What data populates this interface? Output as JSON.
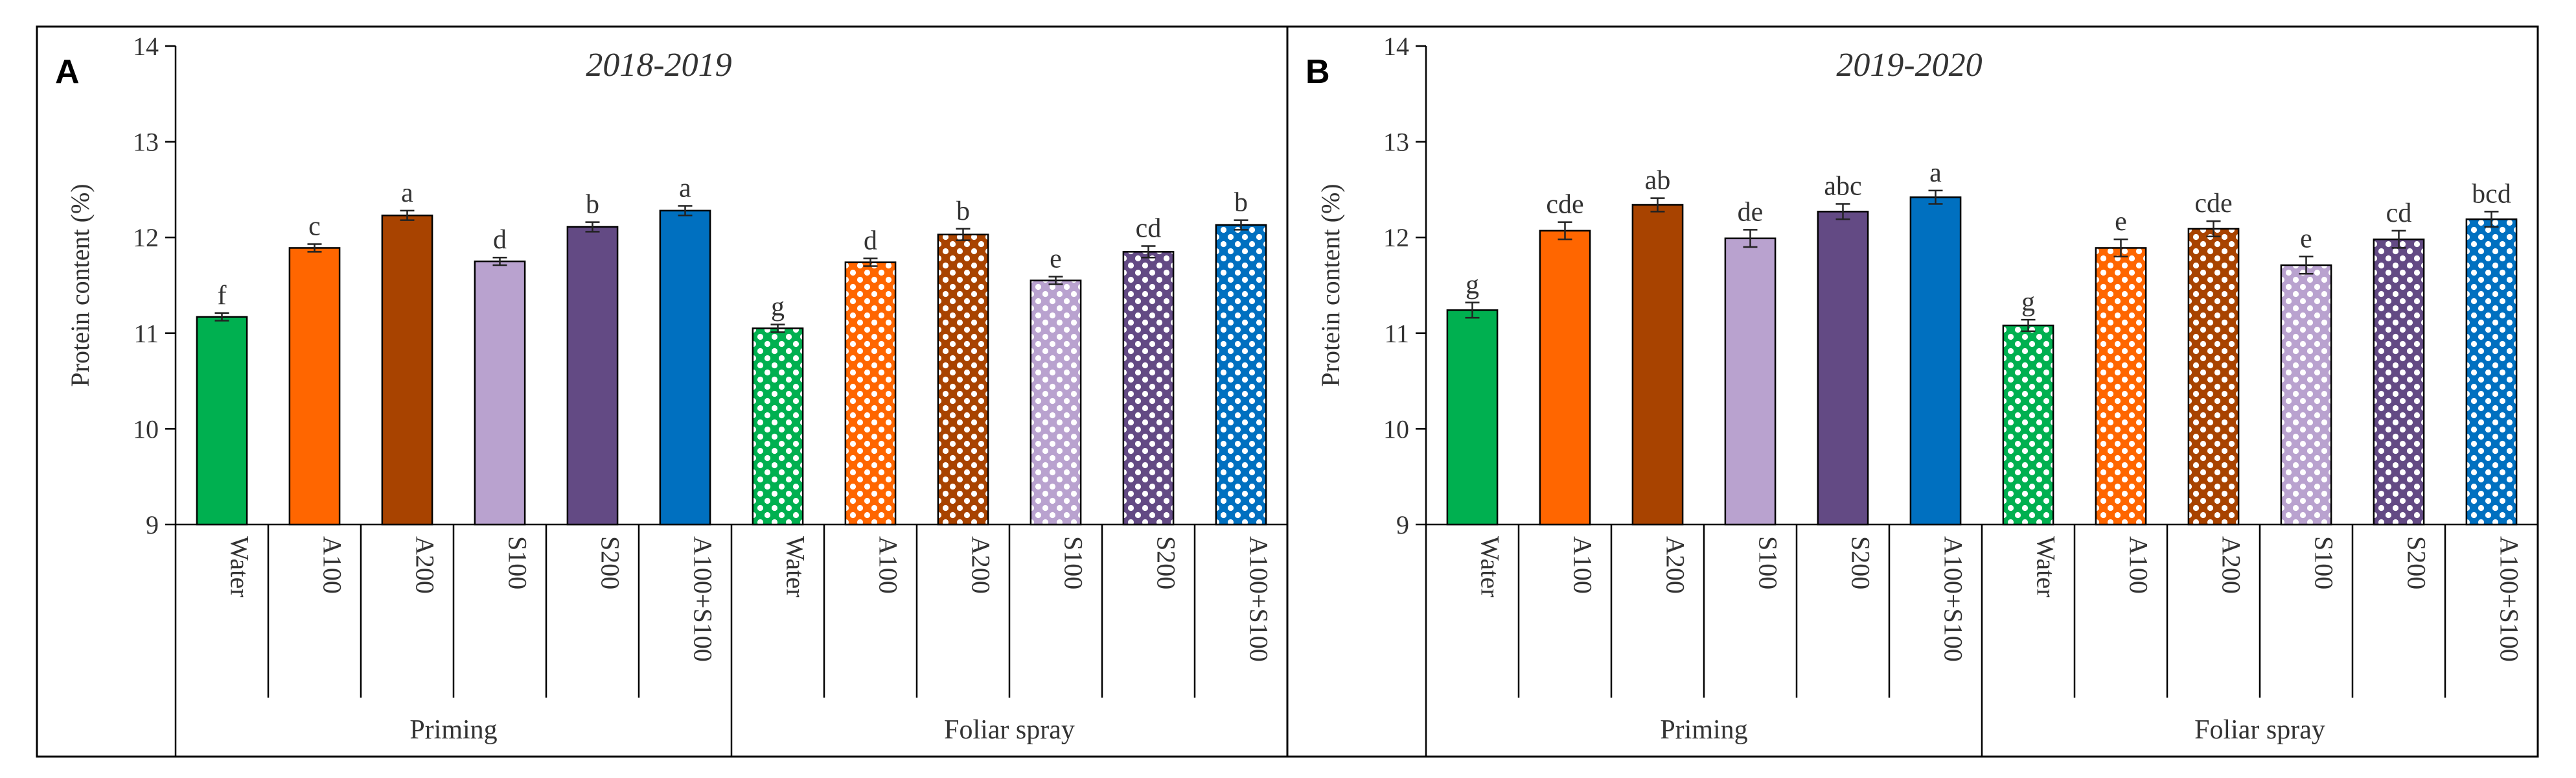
{
  "chart_data": [
    {
      "type": "bar",
      "panel_label": "A",
      "title": "2018-2019",
      "ylabel": "Protein content (%)",
      "ylim": [
        9,
        14
      ],
      "yticks": [
        "9",
        "10",
        "11",
        "12",
        "13",
        "14"
      ],
      "grid": false,
      "categories": [
        "Water",
        "A100",
        "A200",
        "S100",
        "S200",
        "A100+S100",
        "Water",
        "A100",
        "A200",
        "S100",
        "S200",
        "A100+S100"
      ],
      "groups": [
        {
          "label": "Priming",
          "count": 6
        },
        {
          "label": "Foliar spray",
          "count": 6
        }
      ],
      "values": [
        11.17,
        11.89,
        12.23,
        11.75,
        12.11,
        12.28,
        11.05,
        11.74,
        12.03,
        11.55,
        11.85,
        12.13
      ],
      "errors": [
        0.04,
        0.04,
        0.05,
        0.04,
        0.05,
        0.05,
        0.04,
        0.04,
        0.06,
        0.04,
        0.06,
        0.05
      ],
      "letters": [
        "f",
        "c",
        "a",
        "d",
        "b",
        "a",
        "g",
        "d",
        "b",
        "e",
        "cd",
        "b"
      ]
    },
    {
      "type": "bar",
      "panel_label": "B",
      "title": "2019-2020",
      "ylabel": "Protein content (%)",
      "ylim": [
        9,
        14
      ],
      "yticks": [
        "9",
        "10",
        "11",
        "12",
        "13",
        "14"
      ],
      "grid": false,
      "categories": [
        "Water",
        "A100",
        "A200",
        "S100",
        "S200",
        "A100+S100",
        "Water",
        "A100",
        "A200",
        "S100",
        "S200",
        "A100+S100"
      ],
      "groups": [
        {
          "label": "Priming",
          "count": 6
        },
        {
          "label": "Foliar spray",
          "count": 6
        }
      ],
      "values": [
        11.24,
        12.07,
        12.34,
        11.99,
        12.27,
        12.42,
        11.08,
        11.89,
        12.09,
        11.71,
        11.98,
        12.19
      ],
      "errors": [
        0.08,
        0.09,
        0.07,
        0.09,
        0.08,
        0.07,
        0.06,
        0.09,
        0.08,
        0.09,
        0.09,
        0.08
      ],
      "letters": [
        "g",
        "cde",
        "ab",
        "de",
        "abc",
        "a",
        "g",
        "e",
        "cde",
        "e",
        "cd",
        "bcd"
      ]
    }
  ],
  "bar_colors": [
    "#00b050",
    "#ff6600",
    "#a84300",
    "#b9a2cf",
    "#634a84",
    "#0070c0"
  ],
  "bar_fills": [
    "solid",
    "solid",
    "solid",
    "solid",
    "solid",
    "solid",
    "pattern",
    "pattern",
    "pattern",
    "pattern",
    "pattern",
    "pattern"
  ]
}
